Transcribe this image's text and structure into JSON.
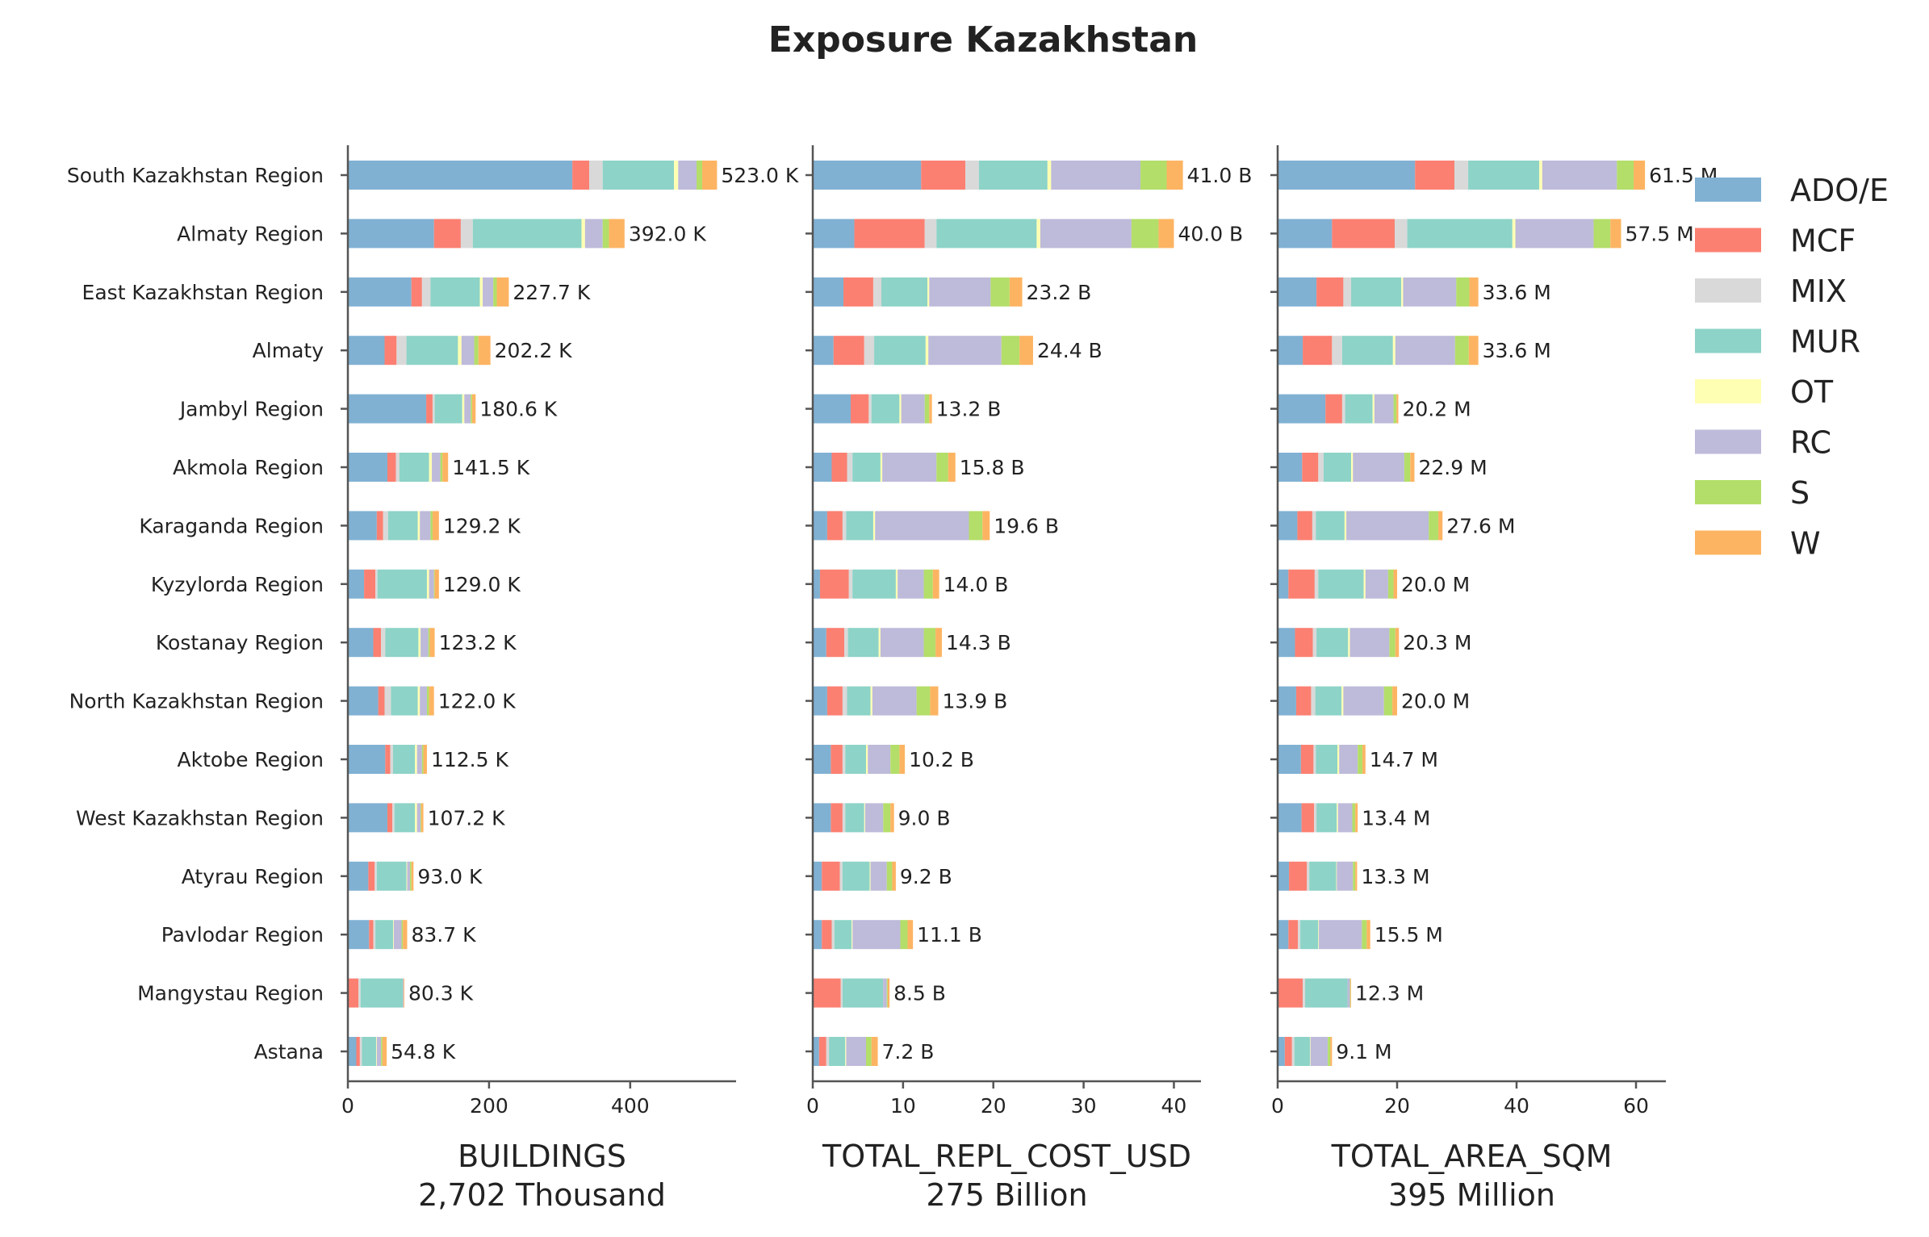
{
  "chart_data": {
    "type": "bar",
    "orientation": "horizontal",
    "stacked": true,
    "title": "Exposure Kazakhstan",
    "grid": false,
    "legend_position": "right",
    "categories": [
      "South Kazakhstan Region",
      "Almaty Region",
      "East Kazakhstan Region",
      "Almaty",
      "Jambyl Region",
      "Akmola Region",
      "Karaganda Region",
      "Kyzylorda Region",
      "Kostanay Region",
      "North Kazakhstan Region",
      "Aktobe Region",
      "West Kazakhstan Region",
      "Atyrau Region",
      "Pavlodar Region",
      "Mangystau Region",
      "Astana"
    ],
    "series_names": [
      "ADO/E",
      "MCF",
      "MIX",
      "MUR",
      "OT",
      "RC",
      "S",
      "W"
    ],
    "colors": [
      "#80b1d3",
      "#fb8072",
      "#d9d9d9",
      "#8dd3c7",
      "#ffffb3",
      "#bebada",
      "#b3de69",
      "#fdb462"
    ],
    "panels": [
      {
        "xlabel": "BUILDINGS",
        "subtitle": "2,702 Thousand",
        "xlim": [
          0,
          550
        ],
        "xticks": [
          0,
          200,
          400
        ],
        "totals_labels": [
          "523.0 K",
          "392.0 K",
          "227.7 K",
          "202.2 K",
          "180.6 K",
          "141.5 K",
          "129.2 K",
          "129.0 K",
          "123.2 K",
          "122.0 K",
          "112.5 K",
          "107.2 K",
          "93.0 K",
          "83.7 K",
          "80.3 K",
          "54.8 K"
        ],
        "values": [
          [
            318,
            24,
            19,
            101,
            6,
            26,
            8,
            21
          ],
          [
            122,
            38,
            17,
            154,
            5,
            25,
            9,
            22
          ],
          [
            90,
            15,
            12,
            70,
            4,
            15,
            5,
            17
          ],
          [
            52,
            17,
            14,
            73,
            5,
            18,
            6,
            17
          ],
          [
            111,
            9,
            3,
            39,
            3,
            9,
            2,
            5
          ],
          [
            56,
            12,
            5,
            42,
            4,
            12,
            3,
            8
          ],
          [
            41,
            9,
            7,
            42,
            3,
            15,
            3,
            9
          ],
          [
            23,
            16,
            3,
            70,
            3,
            7,
            1,
            6
          ],
          [
            36,
            11,
            6,
            47,
            3,
            11,
            2,
            7
          ],
          [
            43,
            9,
            9,
            38,
            3,
            10,
            3,
            7
          ],
          [
            53,
            7,
            4,
            31,
            3,
            7,
            2,
            5
          ],
          [
            56,
            7,
            3,
            29,
            3,
            5,
            1,
            3
          ],
          [
            29,
            9,
            3,
            42,
            1,
            4,
            2,
            3
          ],
          [
            30,
            6,
            3,
            25,
            1,
            11,
            2,
            6
          ],
          [
            0,
            15,
            3,
            60,
            0,
            1,
            0,
            1
          ],
          [
            12,
            5,
            3,
            20,
            1,
            6,
            2,
            6
          ]
        ]
      },
      {
        "xlabel": "TOTAL_REPL_COST_USD",
        "subtitle": "275 Billion",
        "xlim": [
          0,
          43
        ],
        "xticks": [
          0,
          10,
          20,
          30,
          40
        ],
        "totals_labels": [
          "41.0 B",
          "40.0 B",
          "23.2 B",
          "24.4 B",
          "13.2 B",
          "15.8 B",
          "19.6 B",
          "14.0 B",
          "14.3 B",
          "13.9 B",
          "10.2 B",
          "9.0 B",
          "9.2 B",
          "11.1 B",
          "8.5 B",
          "7.2 B"
        ],
        "values": [
          [
            12.0,
            4.9,
            1.5,
            7.6,
            0.4,
            9.9,
            2.9,
            1.8
          ],
          [
            4.6,
            7.8,
            1.3,
            11.1,
            0.4,
            10.1,
            3.0,
            1.7
          ],
          [
            3.4,
            3.3,
            0.9,
            5.1,
            0.2,
            6.8,
            2.1,
            1.4
          ],
          [
            2.3,
            3.4,
            1.1,
            5.7,
            0.3,
            8.1,
            2.0,
            1.5
          ],
          [
            4.2,
            2.0,
            0.3,
            3.1,
            0.2,
            2.6,
            0.5,
            0.3
          ],
          [
            2.1,
            1.7,
            0.6,
            3.1,
            0.2,
            6.0,
            1.3,
            0.8
          ],
          [
            1.6,
            1.7,
            0.4,
            3.0,
            0.2,
            10.4,
            1.5,
            0.8
          ],
          [
            0.8,
            3.2,
            0.4,
            4.8,
            0.2,
            2.9,
            1.0,
            0.7
          ],
          [
            1.5,
            2.0,
            0.4,
            3.4,
            0.2,
            4.8,
            1.3,
            0.7
          ],
          [
            1.6,
            1.7,
            0.5,
            2.6,
            0.2,
            4.9,
            1.5,
            0.9
          ],
          [
            2.0,
            1.3,
            0.3,
            2.3,
            0.2,
            2.5,
            1.0,
            0.6
          ],
          [
            2.0,
            1.3,
            0.3,
            2.1,
            0.1,
            2.0,
            0.8,
            0.4
          ],
          [
            1.0,
            2.0,
            0.3,
            3.0,
            0.1,
            1.8,
            0.6,
            0.4
          ],
          [
            1.0,
            1.1,
            0.3,
            1.9,
            0.1,
            5.3,
            0.8,
            0.6
          ],
          [
            0.0,
            3.1,
            0.2,
            4.5,
            0.0,
            0.4,
            0.1,
            0.2
          ],
          [
            0.7,
            0.8,
            0.3,
            1.8,
            0.1,
            2.2,
            0.6,
            0.7
          ]
        ]
      },
      {
        "xlabel": "TOTAL_AREA_SQM",
        "subtitle": "395 Million",
        "xlim": [
          0,
          65
        ],
        "xticks": [
          0,
          20,
          40,
          60
        ],
        "totals_labels": [
          "61.5 M",
          "57.5 M",
          "33.6 M",
          "33.6 M",
          "20.2 M",
          "22.9 M",
          "27.6 M",
          "20.0 M",
          "20.3 M",
          "20.0 M",
          "14.7 M",
          "13.4 M",
          "13.3 M",
          "15.5 M",
          "12.3 M",
          "9.1 M"
        ],
        "values": [
          [
            23.0,
            6.6,
            2.3,
            11.9,
            0.5,
            12.5,
            2.8,
            1.9
          ],
          [
            9.1,
            10.5,
            2.1,
            17.6,
            0.5,
            13.1,
            2.8,
            1.8
          ],
          [
            6.5,
            4.5,
            1.3,
            8.4,
            0.3,
            8.9,
            2.2,
            1.5
          ],
          [
            4.2,
            4.9,
            1.7,
            8.5,
            0.4,
            10.0,
            2.3,
            1.6
          ],
          [
            8.0,
            2.8,
            0.5,
            4.6,
            0.3,
            3.2,
            0.5,
            0.3
          ],
          [
            4.1,
            2.7,
            0.9,
            4.6,
            0.3,
            8.6,
            1.0,
            0.7
          ],
          [
            3.3,
            2.5,
            0.6,
            4.8,
            0.3,
            13.8,
            1.6,
            0.7
          ],
          [
            1.8,
            4.4,
            0.6,
            7.6,
            0.3,
            3.8,
            0.9,
            0.6
          ],
          [
            2.9,
            3.0,
            0.6,
            5.3,
            0.3,
            6.6,
            1.0,
            0.6
          ],
          [
            3.1,
            2.5,
            0.7,
            4.4,
            0.3,
            6.8,
            1.4,
            0.8
          ],
          [
            3.9,
            2.1,
            0.4,
            3.6,
            0.3,
            3.1,
            0.8,
            0.5
          ],
          [
            4.0,
            2.1,
            0.4,
            3.4,
            0.2,
            2.4,
            0.5,
            0.4
          ],
          [
            1.9,
            3.0,
            0.4,
            4.5,
            0.1,
            2.7,
            0.4,
            0.3
          ],
          [
            1.8,
            1.6,
            0.4,
            3.0,
            0.1,
            7.2,
            0.8,
            0.6
          ],
          [
            0.0,
            4.2,
            0.4,
            7.1,
            0.0,
            0.4,
            0.1,
            0.1
          ],
          [
            1.2,
            1.2,
            0.4,
            2.6,
            0.1,
            2.9,
            0.4,
            0.3
          ]
        ]
      }
    ]
  }
}
